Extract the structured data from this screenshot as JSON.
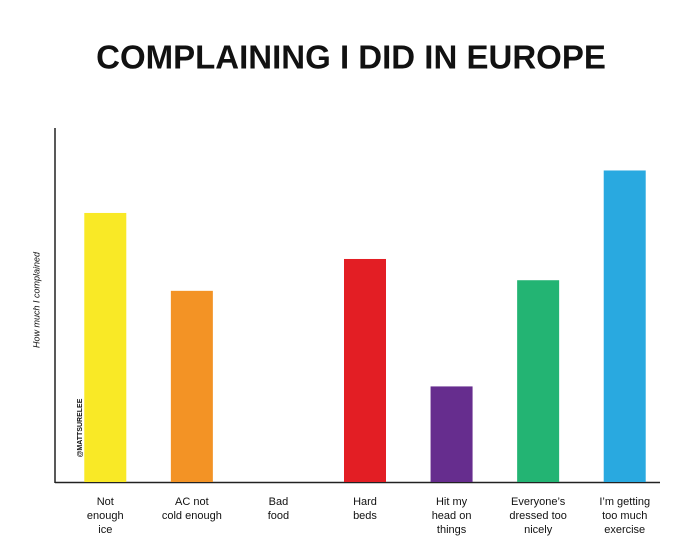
{
  "chart_data": {
    "type": "bar",
    "title": "COMPLAINING I DID IN EUROPE",
    "y_label": "How much I complained",
    "watermark": "@MATTSURELEE",
    "categories": [
      "Not\nenough\nice",
      "AC not\ncold enough",
      "Bad\nfood",
      "Hard\nbeds",
      "Hit my\nhead on\nthings",
      "Everyone’s\ndressed too\nnicely",
      "I’m getting\ntoo much\nexercise"
    ],
    "values": [
      76,
      54,
      0,
      63,
      27,
      57,
      88
    ],
    "colors": [
      "#f9e926",
      "#f39325",
      null,
      "#e31e24",
      "#662d8e",
      "#23b473",
      "#29a9e0"
    ],
    "ylim": [
      0,
      100
    ]
  }
}
